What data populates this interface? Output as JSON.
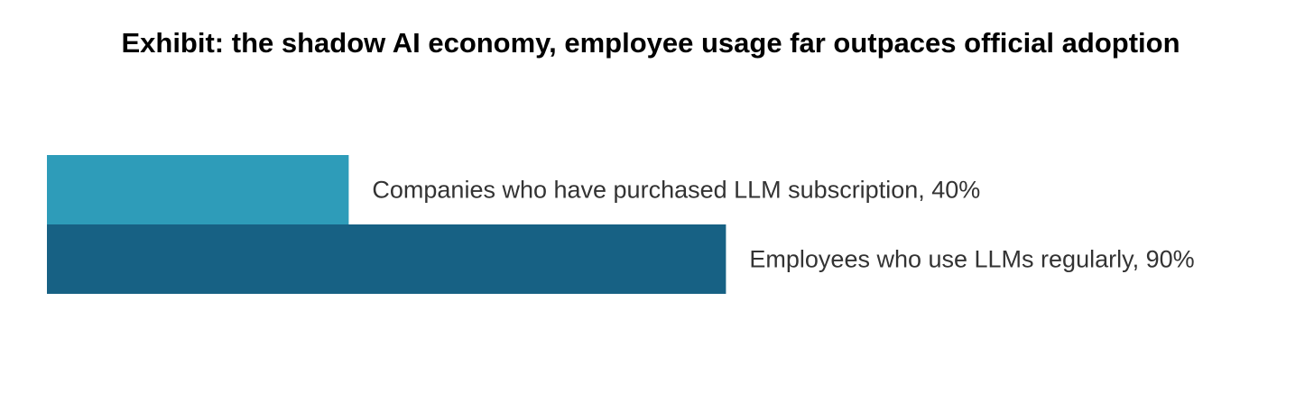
{
  "chart_data": {
    "type": "bar",
    "orientation": "horizontal",
    "title": "Exhibit: the shadow AI economy, employee usage far outpaces official adoption",
    "categories": [
      "Companies who have purchased LLM subscription, 40%",
      "Employees who use LLMs regularly, 90%"
    ],
    "values": [
      40,
      90
    ],
    "colors": [
      "#2e9cb9",
      "#176184"
    ]
  }
}
